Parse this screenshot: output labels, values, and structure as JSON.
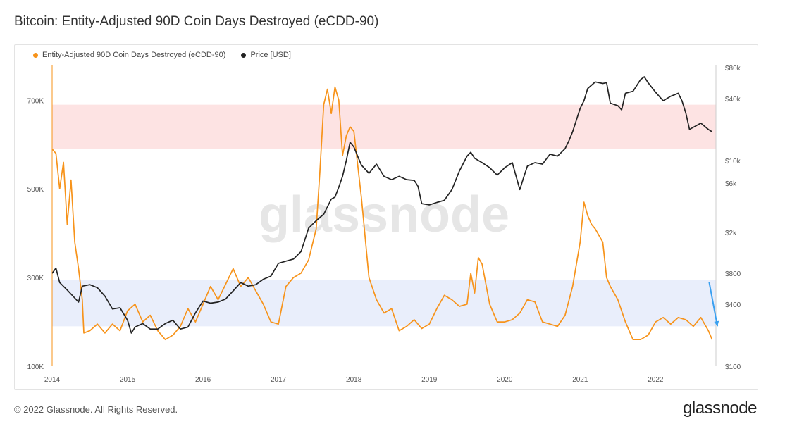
{
  "title": "Bitcoin: Entity-Adjusted 90D Coin Days Destroyed (eCDD-90)",
  "footer": {
    "copyright": "© 2022 Glassnode. All Rights Reserved.",
    "brand": "glassnode"
  },
  "watermark": "glassnode",
  "colors": {
    "ecdd": "#f7931a",
    "price": "#222222",
    "red_band": "#fde3e3",
    "blue_band": "#e9eefb",
    "arrow": "#3aa0f0"
  },
  "chart_data": {
    "type": "line",
    "legend": [
      {
        "name": "Entity-Adjusted 90D Coin Days Destroyed (eCDD-90)",
        "color": "#f7931a"
      },
      {
        "name": "Price [USD]",
        "color": "#222222"
      }
    ],
    "xlim": [
      2014.0,
      2022.8
    ],
    "x_ticks": [
      "2014",
      "2015",
      "2016",
      "2017",
      "2018",
      "2019",
      "2020",
      "2021",
      "2022"
    ],
    "y_left": {
      "label": "",
      "range": [
        100000,
        780000
      ],
      "ticks": [
        {
          "v": 100000,
          "t": "100K"
        },
        {
          "v": 300000,
          "t": "300K"
        },
        {
          "v": 500000,
          "t": "500K"
        },
        {
          "v": 700000,
          "t": "700K"
        }
      ]
    },
    "y_right": {
      "label": "",
      "scale": "log",
      "range": [
        100,
        85000
      ],
      "ticks": [
        {
          "v": 100,
          "t": "$100"
        },
        {
          "v": 400,
          "t": "$400"
        },
        {
          "v": 800,
          "t": "$800"
        },
        {
          "v": 2000,
          "t": "$2k"
        },
        {
          "v": 6000,
          "t": "$6k"
        },
        {
          "v": 10000,
          "t": "$10k"
        },
        {
          "v": 40000,
          "t": "$40k"
        },
        {
          "v": 80000,
          "t": "$80k"
        }
      ]
    },
    "bands": [
      {
        "axis": "left",
        "from": 590000,
        "to": 690000,
        "color": "#fde3e3"
      },
      {
        "axis": "left",
        "from": 190000,
        "to": 295000,
        "color": "#e9eefb"
      }
    ],
    "series": [
      {
        "name": "Entity-Adjusted 90D Coin Days Destroyed (eCDD-90)",
        "axis": "left",
        "color": "#f7931a",
        "points": [
          [
            2014.0,
            590000
          ],
          [
            2014.05,
            580000
          ],
          [
            2014.1,
            500000
          ],
          [
            2014.15,
            560000
          ],
          [
            2014.2,
            420000
          ],
          [
            2014.25,
            520000
          ],
          [
            2014.3,
            380000
          ],
          [
            2014.35,
            320000
          ],
          [
            2014.4,
            250000
          ],
          [
            2014.42,
            175000
          ],
          [
            2014.5,
            180000
          ],
          [
            2014.6,
            195000
          ],
          [
            2014.7,
            175000
          ],
          [
            2014.8,
            195000
          ],
          [
            2014.9,
            180000
          ],
          [
            2015.0,
            225000
          ],
          [
            2015.1,
            240000
          ],
          [
            2015.2,
            200000
          ],
          [
            2015.3,
            215000
          ],
          [
            2015.4,
            180000
          ],
          [
            2015.5,
            160000
          ],
          [
            2015.6,
            170000
          ],
          [
            2015.7,
            190000
          ],
          [
            2015.8,
            230000
          ],
          [
            2015.9,
            200000
          ],
          [
            2016.0,
            240000
          ],
          [
            2016.1,
            280000
          ],
          [
            2016.2,
            250000
          ],
          [
            2016.3,
            285000
          ],
          [
            2016.4,
            320000
          ],
          [
            2016.5,
            280000
          ],
          [
            2016.6,
            300000
          ],
          [
            2016.7,
            270000
          ],
          [
            2016.8,
            240000
          ],
          [
            2016.9,
            200000
          ],
          [
            2017.0,
            195000
          ],
          [
            2017.1,
            280000
          ],
          [
            2017.2,
            300000
          ],
          [
            2017.3,
            310000
          ],
          [
            2017.4,
            340000
          ],
          [
            2017.5,
            410000
          ],
          [
            2017.55,
            540000
          ],
          [
            2017.6,
            690000
          ],
          [
            2017.65,
            725000
          ],
          [
            2017.7,
            670000
          ],
          [
            2017.75,
            730000
          ],
          [
            2017.8,
            700000
          ],
          [
            2017.85,
            575000
          ],
          [
            2017.9,
            620000
          ],
          [
            2017.95,
            640000
          ],
          [
            2018.0,
            630000
          ],
          [
            2018.1,
            480000
          ],
          [
            2018.2,
            300000
          ],
          [
            2018.3,
            250000
          ],
          [
            2018.4,
            220000
          ],
          [
            2018.5,
            230000
          ],
          [
            2018.6,
            180000
          ],
          [
            2018.7,
            190000
          ],
          [
            2018.8,
            205000
          ],
          [
            2018.9,
            185000
          ],
          [
            2019.0,
            195000
          ],
          [
            2019.1,
            230000
          ],
          [
            2019.2,
            260000
          ],
          [
            2019.3,
            250000
          ],
          [
            2019.4,
            235000
          ],
          [
            2019.5,
            240000
          ],
          [
            2019.55,
            310000
          ],
          [
            2019.6,
            265000
          ],
          [
            2019.65,
            345000
          ],
          [
            2019.7,
            330000
          ],
          [
            2019.8,
            240000
          ],
          [
            2019.9,
            200000
          ],
          [
            2020.0,
            200000
          ],
          [
            2020.1,
            205000
          ],
          [
            2020.2,
            220000
          ],
          [
            2020.3,
            250000
          ],
          [
            2020.4,
            245000
          ],
          [
            2020.5,
            200000
          ],
          [
            2020.6,
            195000
          ],
          [
            2020.7,
            190000
          ],
          [
            2020.8,
            215000
          ],
          [
            2020.9,
            280000
          ],
          [
            2021.0,
            380000
          ],
          [
            2021.05,
            470000
          ],
          [
            2021.1,
            440000
          ],
          [
            2021.15,
            420000
          ],
          [
            2021.2,
            410000
          ],
          [
            2021.3,
            380000
          ],
          [
            2021.35,
            300000
          ],
          [
            2021.4,
            280000
          ],
          [
            2021.5,
            250000
          ],
          [
            2021.6,
            200000
          ],
          [
            2021.7,
            160000
          ],
          [
            2021.8,
            160000
          ],
          [
            2021.9,
            170000
          ],
          [
            2022.0,
            200000
          ],
          [
            2022.1,
            210000
          ],
          [
            2022.2,
            195000
          ],
          [
            2022.3,
            210000
          ],
          [
            2022.4,
            205000
          ],
          [
            2022.5,
            190000
          ],
          [
            2022.6,
            210000
          ],
          [
            2022.7,
            180000
          ],
          [
            2022.75,
            160000
          ]
        ]
      },
      {
        "name": "Price [USD]",
        "axis": "right",
        "color": "#222222",
        "points": [
          [
            2014.0,
            800
          ],
          [
            2014.05,
            900
          ],
          [
            2014.1,
            650
          ],
          [
            2014.2,
            550
          ],
          [
            2014.3,
            460
          ],
          [
            2014.35,
            420
          ],
          [
            2014.4,
            600
          ],
          [
            2014.5,
            620
          ],
          [
            2014.6,
            580
          ],
          [
            2014.7,
            480
          ],
          [
            2014.8,
            360
          ],
          [
            2014.9,
            370
          ],
          [
            2015.0,
            280
          ],
          [
            2015.05,
            210
          ],
          [
            2015.1,
            240
          ],
          [
            2015.2,
            260
          ],
          [
            2015.3,
            230
          ],
          [
            2015.4,
            230
          ],
          [
            2015.5,
            260
          ],
          [
            2015.6,
            280
          ],
          [
            2015.7,
            230
          ],
          [
            2015.8,
            240
          ],
          [
            2015.9,
            330
          ],
          [
            2016.0,
            430
          ],
          [
            2016.1,
            410
          ],
          [
            2016.2,
            420
          ],
          [
            2016.3,
            450
          ],
          [
            2016.4,
            540
          ],
          [
            2016.5,
            650
          ],
          [
            2016.6,
            600
          ],
          [
            2016.7,
            620
          ],
          [
            2016.8,
            700
          ],
          [
            2016.9,
            750
          ],
          [
            2017.0,
            1000
          ],
          [
            2017.1,
            1050
          ],
          [
            2017.2,
            1100
          ],
          [
            2017.3,
            1300
          ],
          [
            2017.4,
            2200
          ],
          [
            2017.5,
            2600
          ],
          [
            2017.6,
            3000
          ],
          [
            2017.7,
            4200
          ],
          [
            2017.75,
            4400
          ],
          [
            2017.8,
            5500
          ],
          [
            2017.85,
            7000
          ],
          [
            2017.9,
            10000
          ],
          [
            2017.95,
            15000
          ],
          [
            2018.0,
            13500
          ],
          [
            2018.05,
            11000
          ],
          [
            2018.1,
            9000
          ],
          [
            2018.2,
            7500
          ],
          [
            2018.3,
            9200
          ],
          [
            2018.4,
            7000
          ],
          [
            2018.5,
            6500
          ],
          [
            2018.6,
            7000
          ],
          [
            2018.7,
            6500
          ],
          [
            2018.8,
            6400
          ],
          [
            2018.85,
            5600
          ],
          [
            2018.9,
            3800
          ],
          [
            2019.0,
            3700
          ],
          [
            2019.1,
            3900
          ],
          [
            2019.2,
            4100
          ],
          [
            2019.3,
            5200
          ],
          [
            2019.4,
            7900
          ],
          [
            2019.5,
            11000
          ],
          [
            2019.55,
            12000
          ],
          [
            2019.6,
            10500
          ],
          [
            2019.7,
            9500
          ],
          [
            2019.8,
            8500
          ],
          [
            2019.9,
            7200
          ],
          [
            2020.0,
            8500
          ],
          [
            2020.1,
            9500
          ],
          [
            2020.2,
            5200
          ],
          [
            2020.25,
            6800
          ],
          [
            2020.3,
            8800
          ],
          [
            2020.4,
            9500
          ],
          [
            2020.5,
            9200
          ],
          [
            2020.6,
            11500
          ],
          [
            2020.7,
            11000
          ],
          [
            2020.8,
            13000
          ],
          [
            2020.85,
            15500
          ],
          [
            2020.9,
            19000
          ],
          [
            2021.0,
            32000
          ],
          [
            2021.05,
            38000
          ],
          [
            2021.1,
            50000
          ],
          [
            2021.2,
            58000
          ],
          [
            2021.3,
            56000
          ],
          [
            2021.35,
            57000
          ],
          [
            2021.4,
            36000
          ],
          [
            2021.5,
            34000
          ],
          [
            2021.55,
            31000
          ],
          [
            2021.6,
            45000
          ],
          [
            2021.7,
            47000
          ],
          [
            2021.8,
            61000
          ],
          [
            2021.85,
            65000
          ],
          [
            2021.9,
            57000
          ],
          [
            2022.0,
            46000
          ],
          [
            2022.1,
            38000
          ],
          [
            2022.2,
            42000
          ],
          [
            2022.3,
            45000
          ],
          [
            2022.35,
            38000
          ],
          [
            2022.4,
            29000
          ],
          [
            2022.45,
            20000
          ],
          [
            2022.5,
            21000
          ],
          [
            2022.6,
            23000
          ],
          [
            2022.7,
            20000
          ],
          [
            2022.75,
            19000
          ]
        ]
      }
    ],
    "annotation": {
      "type": "arrow",
      "color": "#3aa0f0",
      "from": [
        2022.71,
        290000
      ],
      "to": [
        2022.82,
        190000
      ]
    }
  }
}
